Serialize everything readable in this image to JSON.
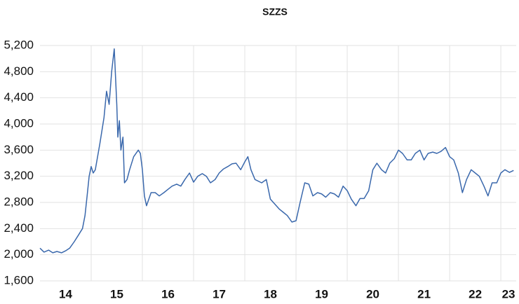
{
  "chart_data": {
    "type": "line",
    "title": "SZZS",
    "x": [
      14.0,
      14.08,
      14.17,
      14.25,
      14.33,
      14.42,
      14.5,
      14.58,
      14.67,
      14.75,
      14.83,
      14.88,
      14.92,
      14.96,
      15.0,
      15.04,
      15.08,
      15.17,
      15.25,
      15.3,
      15.35,
      15.4,
      15.45,
      15.5,
      15.52,
      15.55,
      15.58,
      15.62,
      15.65,
      15.7,
      15.75,
      15.83,
      15.92,
      15.96,
      16.0,
      16.04,
      16.08,
      16.17,
      16.25,
      16.33,
      16.42,
      16.5,
      16.58,
      16.67,
      16.75,
      16.83,
      16.92,
      17.0,
      17.08,
      17.17,
      17.25,
      17.33,
      17.42,
      17.5,
      17.58,
      17.67,
      17.75,
      17.83,
      17.92,
      18.0,
      18.06,
      18.12,
      18.2,
      18.33,
      18.42,
      18.5,
      18.58,
      18.67,
      18.75,
      18.83,
      18.92,
      19.0,
      19.08,
      19.17,
      19.25,
      19.33,
      19.42,
      19.5,
      19.58,
      19.67,
      19.75,
      19.83,
      19.92,
      20.0,
      20.08,
      20.17,
      20.25,
      20.33,
      20.42,
      20.5,
      20.58,
      20.67,
      20.75,
      20.83,
      20.92,
      21.0,
      21.08,
      21.17,
      21.25,
      21.33,
      21.42,
      21.5,
      21.58,
      21.67,
      21.75,
      21.83,
      21.92,
      22.0,
      22.08,
      22.17,
      22.25,
      22.33,
      22.42,
      22.5,
      22.58,
      22.67,
      22.75,
      22.83,
      22.92,
      23.0,
      23.08,
      23.17,
      23.25
    ],
    "series": [
      {
        "name": "SZZS",
        "color": "#3a68ac",
        "values": [
          2100,
          2040,
          2070,
          2030,
          2050,
          2030,
          2060,
          2100,
          2200,
          2300,
          2400,
          2600,
          2900,
          3200,
          3350,
          3250,
          3300,
          3700,
          4100,
          4500,
          4300,
          4800,
          5150,
          4300,
          3800,
          4050,
          3600,
          3800,
          3100,
          3150,
          3300,
          3500,
          3600,
          3550,
          3300,
          2900,
          2750,
          2950,
          2950,
          2900,
          2950,
          3000,
          3050,
          3080,
          3050,
          3150,
          3250,
          3110,
          3200,
          3240,
          3200,
          3100,
          3150,
          3250,
          3310,
          3350,
          3390,
          3400,
          3300,
          3420,
          3500,
          3300,
          3150,
          3100,
          3150,
          2850,
          2780,
          2700,
          2650,
          2600,
          2500,
          2520,
          2800,
          3100,
          3080,
          2900,
          2950,
          2930,
          2880,
          2950,
          2930,
          2880,
          3050,
          2980,
          2850,
          2750,
          2860,
          2860,
          2980,
          3300,
          3400,
          3300,
          3250,
          3400,
          3470,
          3600,
          3550,
          3450,
          3450,
          3550,
          3600,
          3450,
          3550,
          3570,
          3550,
          3580,
          3640,
          3500,
          3450,
          3250,
          2950,
          3150,
          3300,
          3250,
          3200,
          3050,
          2900,
          3100,
          3100,
          3250,
          3300,
          3260,
          3290
        ]
      }
    ],
    "xlim": [
      14,
      23.3
    ],
    "xticks": [
      {
        "value": 14.5,
        "label": "14"
      },
      {
        "value": 15.5,
        "label": "15"
      },
      {
        "value": 16.5,
        "label": "16"
      },
      {
        "value": 17.5,
        "label": "17"
      },
      {
        "value": 18.5,
        "label": "18"
      },
      {
        "value": 19.5,
        "label": "19"
      },
      {
        "value": 20.5,
        "label": "20"
      },
      {
        "value": 21.5,
        "label": "21"
      },
      {
        "value": 22.5,
        "label": "22"
      },
      {
        "value": 23.15,
        "label": "23"
      }
    ],
    "xgrid": [
      15,
      16,
      17,
      18,
      19,
      20,
      21,
      22,
      23
    ],
    "ylim": [
      1600,
      5200
    ],
    "yticks": [
      {
        "value": 1600,
        "label": "1,600"
      },
      {
        "value": 2000,
        "label": "2,000"
      },
      {
        "value": 2400,
        "label": "2,400"
      },
      {
        "value": 2800,
        "label": "2,800"
      },
      {
        "value": 3200,
        "label": "3,200"
      },
      {
        "value": 3600,
        "label": "3,600"
      },
      {
        "value": 4000,
        "label": "4,000"
      },
      {
        "value": 4400,
        "label": "4,400"
      },
      {
        "value": 4800,
        "label": "4,800"
      },
      {
        "value": 5200,
        "label": "5,200"
      }
    ],
    "grid": true
  }
}
